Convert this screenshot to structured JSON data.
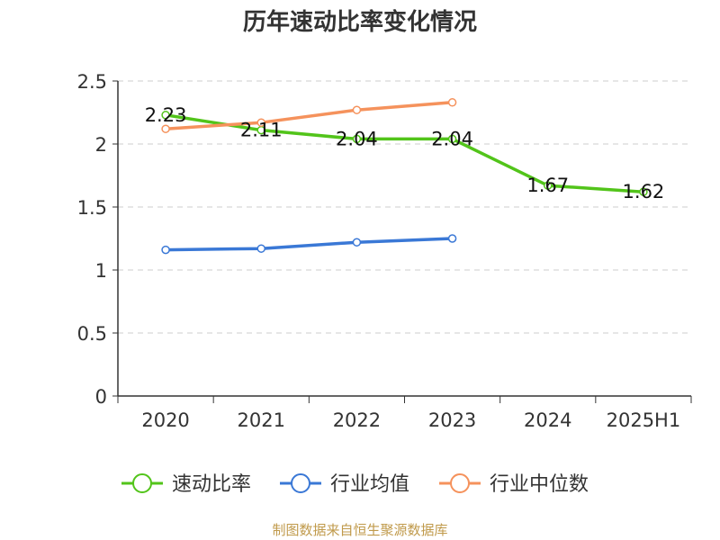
{
  "source": "制图数据来自恒生聚源数据库",
  "colors": {
    "axis": "#333333",
    "grid": "#cccccc",
    "source": "#c09a4b"
  },
  "chart_data": {
    "type": "line",
    "title": "历年速动比率变化情况",
    "xlabel": "",
    "ylabel": "",
    "categories": [
      "2020",
      "2021",
      "2022",
      "2023",
      "2024",
      "2025H1"
    ],
    "y_ticks": [
      "0",
      "0.5",
      "1",
      "1.5",
      "2",
      "2.5"
    ],
    "ylim": [
      0,
      2.5
    ],
    "grid": true,
    "legend_position": "bottom",
    "series": [
      {
        "name": "速动比率",
        "color": "#52c41a",
        "values": [
          2.23,
          2.11,
          2.04,
          2.04,
          1.67,
          1.62
        ],
        "labels": [
          "2.23",
          "2.11",
          "2.04",
          "2.04",
          "1.67",
          "1.62"
        ]
      },
      {
        "name": "行业均值",
        "color": "#3a78d6",
        "values": [
          1.16,
          1.17,
          1.22,
          1.25,
          null,
          null
        ]
      },
      {
        "name": "行业中位数",
        "color": "#f5925c",
        "values": [
          2.12,
          2.17,
          2.27,
          2.33,
          null,
          null
        ]
      }
    ]
  }
}
